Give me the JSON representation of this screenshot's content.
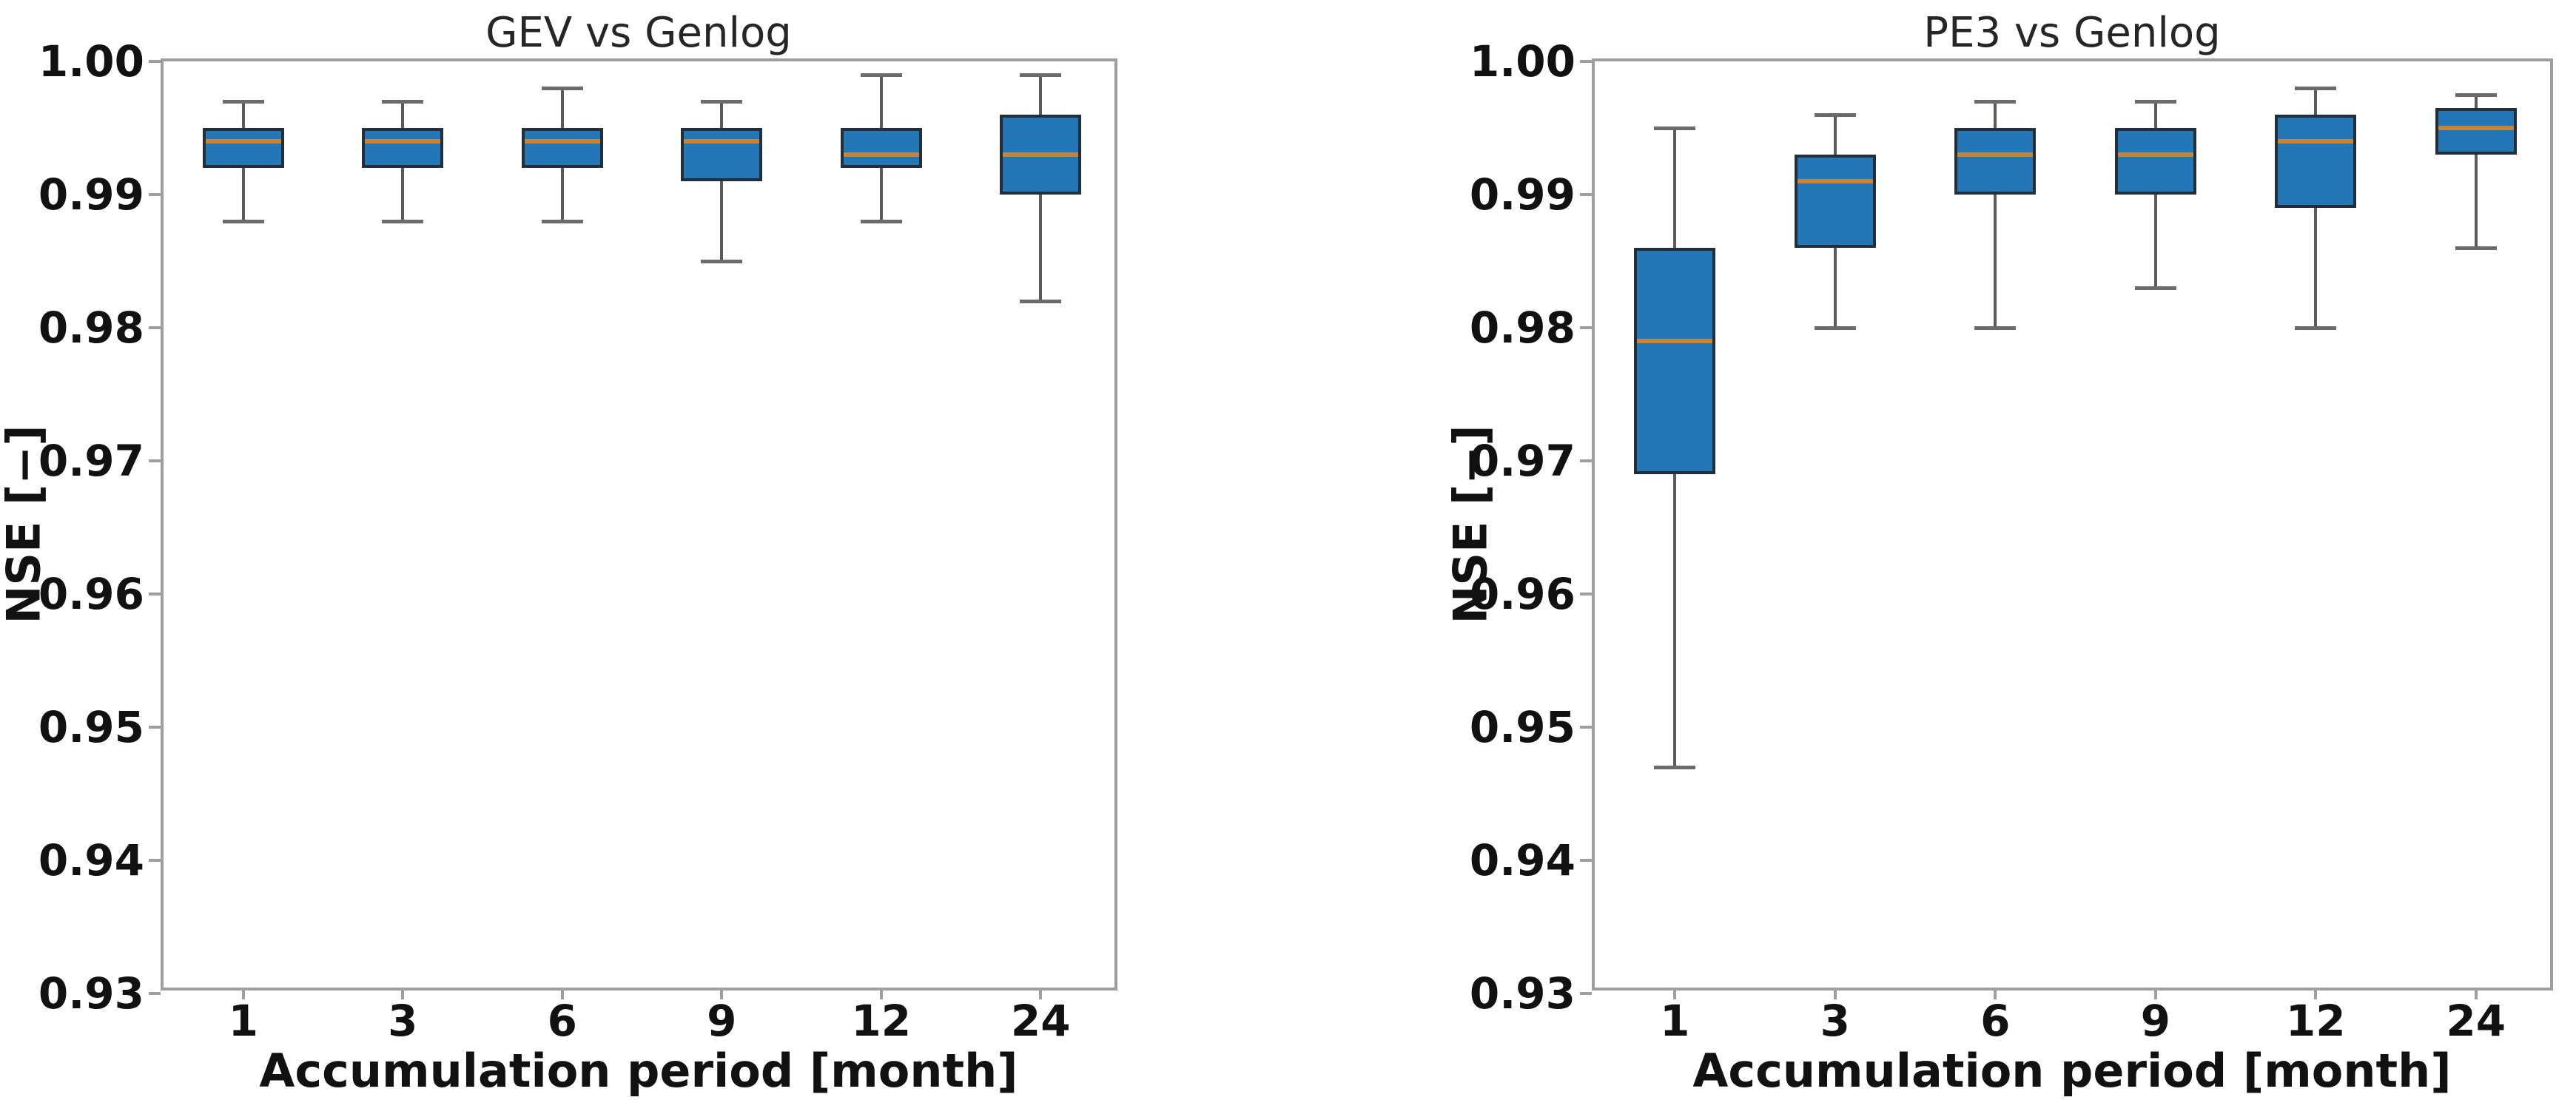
{
  "figure": {
    "background": "#ffffff"
  },
  "colors": {
    "box_fill": "#2277b4",
    "box_edge": "#242e38",
    "median": "#c4843c",
    "whisker": "#5a5a5a",
    "cap": "#6b6b6b",
    "spine": "#9e9e9e",
    "text": "#111111"
  },
  "chart_data": [
    {
      "type": "box",
      "title": "GEV vs Genlog",
      "xlabel": "Accumulation period [month]",
      "ylabel": "NSE [−]",
      "categories": [
        "1",
        "3",
        "6",
        "9",
        "12",
        "24"
      ],
      "ylim": [
        0.93,
        1.0
      ],
      "yticks": [
        "1.00",
        "0.99",
        "0.98",
        "0.97",
        "0.96",
        "0.95",
        "0.94",
        "0.93"
      ],
      "grid": false,
      "legend": "none",
      "series": [
        {
          "category": "1",
          "whislo": 0.988,
          "q1": 0.992,
          "med": 0.994,
          "q3": 0.995,
          "whishi": 0.997
        },
        {
          "category": "3",
          "whislo": 0.988,
          "q1": 0.992,
          "med": 0.994,
          "q3": 0.995,
          "whishi": 0.997
        },
        {
          "category": "6",
          "whislo": 0.988,
          "q1": 0.992,
          "med": 0.994,
          "q3": 0.995,
          "whishi": 0.998
        },
        {
          "category": "9",
          "whislo": 0.985,
          "q1": 0.991,
          "med": 0.994,
          "q3": 0.995,
          "whishi": 0.997
        },
        {
          "category": "12",
          "whislo": 0.988,
          "q1": 0.992,
          "med": 0.993,
          "q3": 0.995,
          "whishi": 0.999
        },
        {
          "category": "24",
          "whislo": 0.982,
          "q1": 0.99,
          "med": 0.993,
          "q3": 0.996,
          "whishi": 0.999
        }
      ]
    },
    {
      "type": "box",
      "title": "PE3 vs Genlog",
      "xlabel": "Accumulation period [month]",
      "ylabel": "NSE [−]",
      "categories": [
        "1",
        "3",
        "6",
        "9",
        "12",
        "24"
      ],
      "ylim": [
        0.93,
        1.0
      ],
      "yticks": [
        "1.00",
        "0.99",
        "0.98",
        "0.97",
        "0.96",
        "0.95",
        "0.94",
        "0.93"
      ],
      "grid": false,
      "legend": "none",
      "series": [
        {
          "category": "1",
          "whislo": 0.947,
          "q1": 0.969,
          "med": 0.979,
          "q3": 0.986,
          "whishi": 0.995
        },
        {
          "category": "3",
          "whislo": 0.98,
          "q1": 0.986,
          "med": 0.991,
          "q3": 0.993,
          "whishi": 0.996
        },
        {
          "category": "6",
          "whislo": 0.98,
          "q1": 0.99,
          "med": 0.993,
          "q3": 0.995,
          "whishi": 0.997
        },
        {
          "category": "9",
          "whislo": 0.983,
          "q1": 0.99,
          "med": 0.993,
          "q3": 0.995,
          "whishi": 0.997
        },
        {
          "category": "12",
          "whislo": 0.98,
          "q1": 0.989,
          "med": 0.994,
          "q3": 0.996,
          "whishi": 0.998
        },
        {
          "category": "24",
          "whislo": 0.986,
          "q1": 0.993,
          "med": 0.995,
          "q3": 0.9965,
          "whishi": 0.9975
        }
      ]
    }
  ]
}
